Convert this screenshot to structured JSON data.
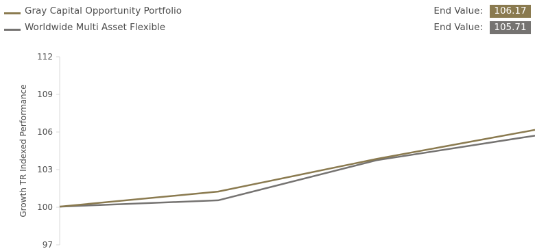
{
  "legend": [
    {
      "label": "Gray Capital Opportunity Portfolio",
      "end_label": "End Value:",
      "end_value": "106.17",
      "color": "#8a7a4f"
    },
    {
      "label": "Worldwide Multi Asset Flexible",
      "end_label": "End Value:",
      "end_value": "105.71",
      "color": "#757371"
    }
  ],
  "chart_data": {
    "type": "line",
    "ylabel": "Growth TR Indexed Performance",
    "xlabel": "",
    "ylim": [
      97,
      112
    ],
    "yticks": [
      97,
      100,
      103,
      106,
      109,
      112
    ],
    "x": [
      0,
      1,
      2,
      3
    ],
    "series": [
      {
        "name": "Gray Capital Opportunity Portfolio",
        "color": "#8a7a4f",
        "values": [
          100.05,
          101.25,
          103.85,
          106.17
        ]
      },
      {
        "name": "Worldwide Multi Asset Flexible",
        "color": "#757371",
        "values": [
          100.05,
          100.55,
          103.75,
          105.71
        ]
      }
    ],
    "grid": false
  }
}
